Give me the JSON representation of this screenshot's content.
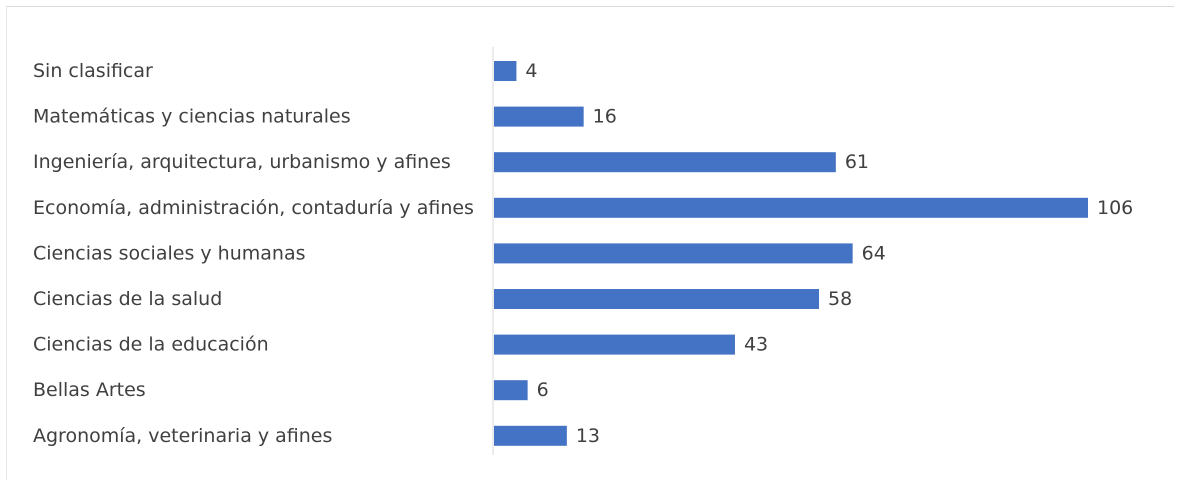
{
  "chart_data": {
    "type": "bar",
    "orientation": "horizontal",
    "title": "",
    "xlabel": "",
    "ylabel": "",
    "categories": [
      "Sin clasificar",
      "Matemáticas y ciencias naturales",
      "Ingeniería, arquitectura, urbanismo y afines",
      "Economía, administración, contaduría y afines",
      "Ciencias sociales y humanas",
      "Ciencias de la salud",
      "Ciencias de la educación",
      "Bellas Artes",
      "Agronomía, veterinaria y afines"
    ],
    "values": [
      4,
      16,
      61,
      106,
      64,
      58,
      43,
      6,
      13
    ],
    "xlim": [
      0,
      106
    ],
    "grid": false,
    "legend": "none",
    "bar_color": "#4472c4",
    "text_color": "#404040"
  }
}
